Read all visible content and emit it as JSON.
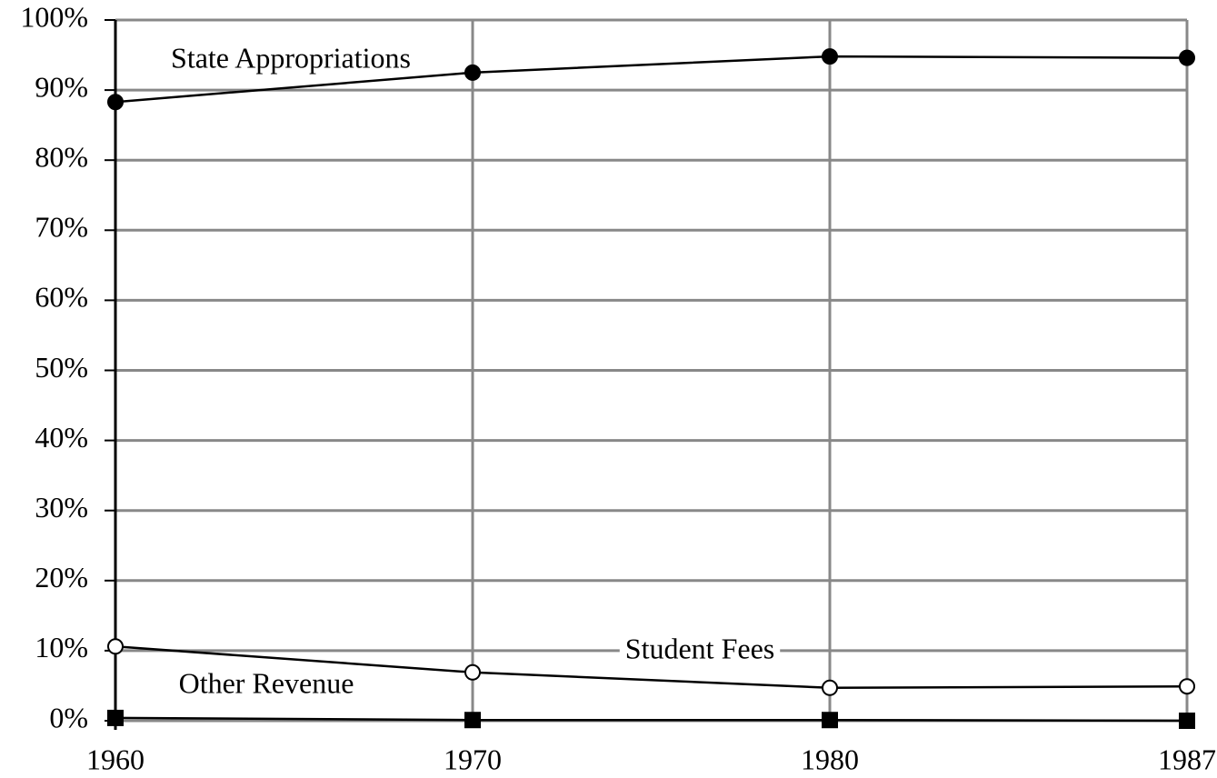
{
  "chart_data": {
    "type": "line",
    "categories": [
      "1960",
      "1970",
      "1980",
      "1987"
    ],
    "series": [
      {
        "name": "State Appropriations",
        "color": "#000000",
        "marker": "circle",
        "filled": true,
        "values": [
          88.3,
          92.5,
          94.8,
          94.6
        ]
      },
      {
        "name": "Student Fees",
        "color": "#000000",
        "marker": "circle",
        "filled": false,
        "values": [
          10.6,
          6.9,
          4.7,
          4.9
        ]
      },
      {
        "name": "Other Revenue",
        "color": "#000000",
        "marker": "square",
        "filled": true,
        "values": [
          0.4,
          0.1,
          0.1,
          0.0
        ]
      }
    ],
    "ylim": [
      0,
      100
    ],
    "yticks": [
      {
        "value": 0,
        "label": "0%"
      },
      {
        "value": 10,
        "label": "10%"
      },
      {
        "value": 20,
        "label": "20%"
      },
      {
        "value": 30,
        "label": "30%"
      },
      {
        "value": 40,
        "label": "40%"
      },
      {
        "value": 50,
        "label": "50%"
      },
      {
        "value": 60,
        "label": "60%"
      },
      {
        "value": 70,
        "label": "70%"
      },
      {
        "value": 80,
        "label": "80%"
      },
      {
        "value": 90,
        "label": "90%"
      },
      {
        "value": 100,
        "label": "100%"
      }
    ],
    "grid": true
  }
}
